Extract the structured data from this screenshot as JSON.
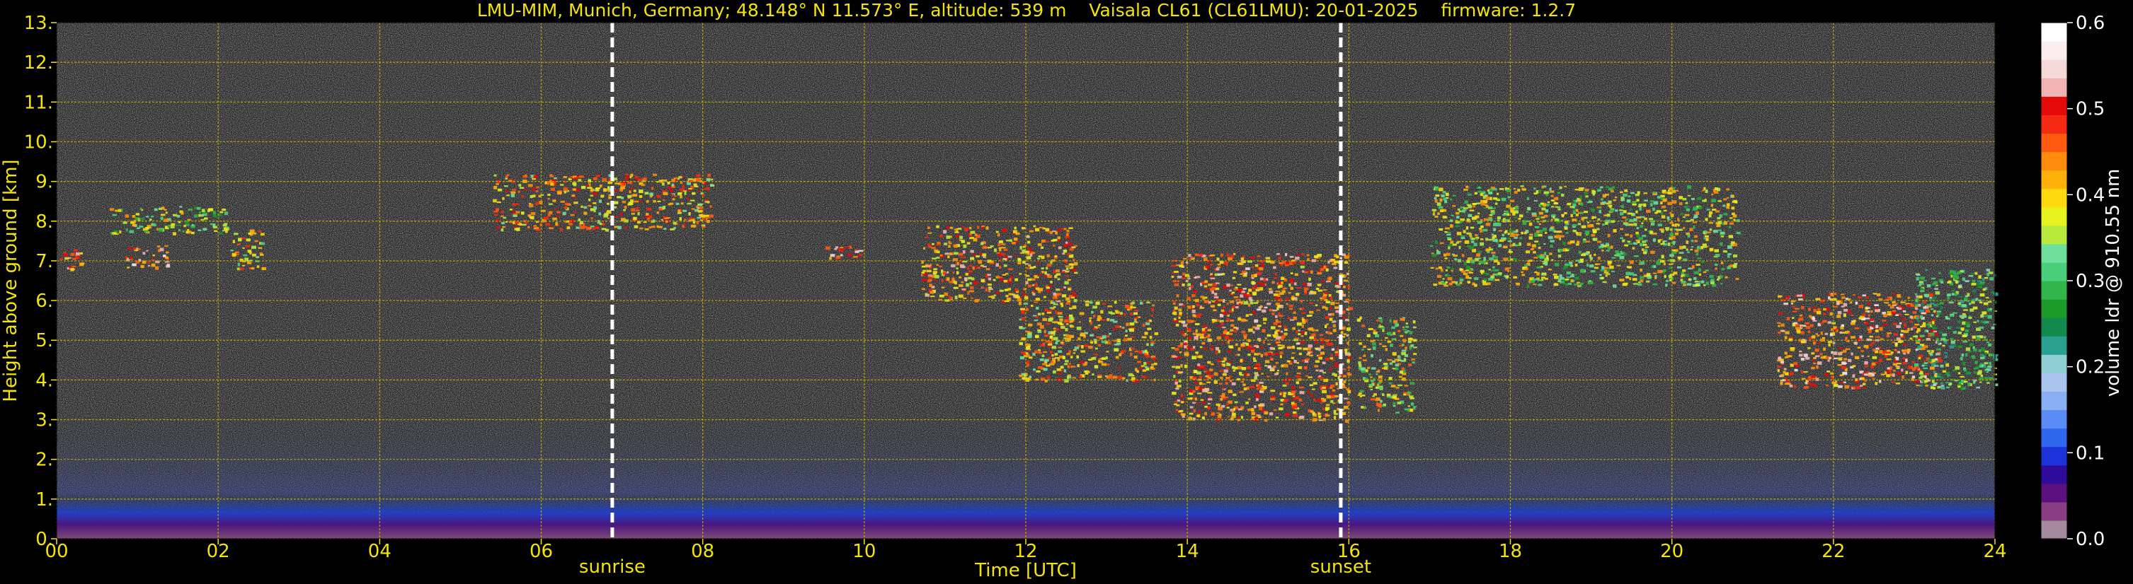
{
  "chart_data": {
    "type": "heatmap",
    "title": "LMU-MIM, Munich, Germany; 48.148° N 11.573° E, altitude: 539 m    Vaisala CL61 (CL61LMU): 20-01-2025    firmware: 1.2.7",
    "xlabel": "Time [UTC]",
    "ylabel": "Height above ground [km]",
    "xlim": [
      0,
      24
    ],
    "ylim": [
      0,
      13
    ],
    "x_ticks": [
      "00",
      "02",
      "04",
      "06",
      "08",
      "10",
      "12",
      "14",
      "16",
      "18",
      "20",
      "22",
      "24"
    ],
    "y_ticks": [
      "0.",
      "1.",
      "2.",
      "3.",
      "4.",
      "5.",
      "6.",
      "7.",
      "8.",
      "9.",
      "10.",
      "11.",
      "12.",
      "13."
    ],
    "grid": true,
    "colorbar": {
      "label": "volume ldr @ 910.55 nm",
      "range": [
        0,
        0.6
      ],
      "ticks": [
        "0.0",
        "0.1",
        "0.2",
        "0.3",
        "0.4",
        "0.5",
        "0.6"
      ],
      "colors": [
        "#a58a9e",
        "#8a3d82",
        "#5b117e",
        "#2e0b98",
        "#1b33d9",
        "#2e66ee",
        "#5b8cf5",
        "#8aaef4",
        "#a9c3ef",
        "#8fcfd4",
        "#2aa090",
        "#138a4d",
        "#1d9b2a",
        "#30b64a",
        "#49cf7a",
        "#6fdf9e",
        "#b8ea3e",
        "#e8f21f",
        "#fdda0e",
        "#ffb10a",
        "#ff8a0c",
        "#ff5a10",
        "#f42a12",
        "#e40a0a",
        "#f1b3b3",
        "#f5d8d8",
        "#fbeeee",
        "#ffffff"
      ]
    },
    "events": [
      {
        "name": "sunrise",
        "x": 6.88
      },
      {
        "name": "sunset",
        "x": 15.9
      }
    ],
    "cloud_features": [
      {
        "t0": 0.0,
        "t1": 0.35,
        "h_bottom": 6.8,
        "h_top": 7.3,
        "ldr": 0.45
      },
      {
        "t0": 0.65,
        "t1": 2.1,
        "h_bottom": 7.7,
        "h_top": 8.4,
        "ldr": 0.35
      },
      {
        "t0": 0.85,
        "t1": 1.4,
        "h_bottom": 6.8,
        "h_top": 7.4,
        "ldr": 0.48
      },
      {
        "t0": 2.15,
        "t1": 2.55,
        "h_bottom": 6.8,
        "h_top": 7.8,
        "ldr": 0.4
      },
      {
        "t0": 5.4,
        "t1": 8.1,
        "h_bottom": 7.8,
        "h_top": 9.2,
        "ldr": 0.42
      },
      {
        "t0": 9.5,
        "t1": 9.95,
        "h_bottom": 7.0,
        "h_top": 7.4,
        "ldr": 0.47
      },
      {
        "t0": 10.7,
        "t1": 12.6,
        "h_bottom": 6.0,
        "h_top": 7.9,
        "ldr": 0.44
      },
      {
        "t0": 11.9,
        "t1": 13.6,
        "h_bottom": 4.0,
        "h_top": 6.0,
        "ldr": 0.41
      },
      {
        "t0": 13.8,
        "t1": 16.0,
        "h_bottom": 3.0,
        "h_top": 7.2,
        "ldr": 0.45
      },
      {
        "t0": 16.1,
        "t1": 16.8,
        "h_bottom": 3.2,
        "h_top": 5.6,
        "ldr": 0.37
      },
      {
        "t0": 17.0,
        "t1": 20.8,
        "h_bottom": 6.4,
        "h_top": 8.9,
        "ldr": 0.36
      },
      {
        "t0": 21.3,
        "t1": 23.3,
        "h_bottom": 3.8,
        "h_top": 6.2,
        "ldr": 0.47
      },
      {
        "t0": 23.0,
        "t1": 24.0,
        "h_bottom": 3.8,
        "h_top": 6.8,
        "ldr": 0.3
      }
    ]
  }
}
